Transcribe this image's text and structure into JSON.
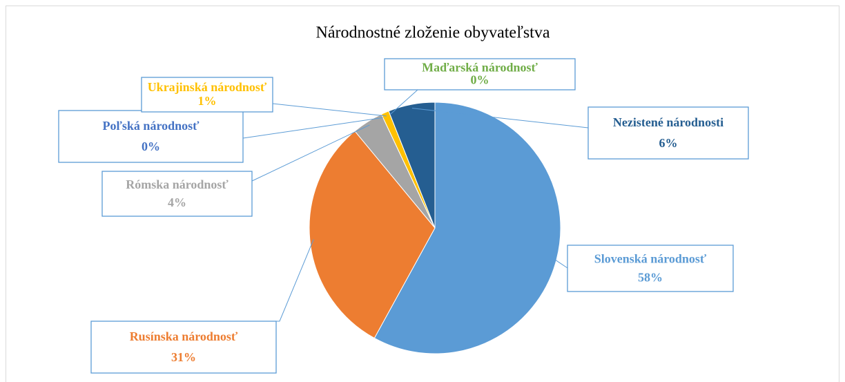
{
  "chart_data": {
    "type": "pie",
    "title": "Národnostné zloženie obyvateľstva",
    "labels": [
      "Slovenská národnosť",
      "Rusínska národnosť",
      "Rómska národnosť",
      "Poľská národnosť",
      "Ukrajinská národnosť",
      "Maďarská národnosť",
      "Nezistené národnosti"
    ],
    "values": [
      58,
      31,
      4,
      0,
      1,
      0,
      6
    ],
    "value_labels": [
      "58%",
      "31%",
      "4%",
      "0%",
      "1%",
      "0%",
      "6%"
    ],
    "colors": [
      "#5b9bd5",
      "#ed7d31",
      "#a5a5a5",
      "#4472c4",
      "#ffc000",
      "#70ad47",
      "#255e91"
    ]
  }
}
